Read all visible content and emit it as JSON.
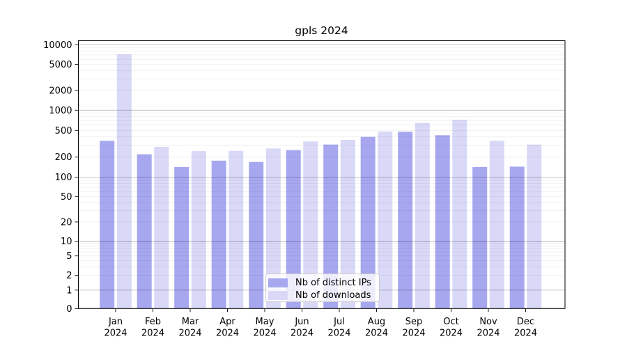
{
  "chart_data": {
    "type": "bar",
    "title": "gpls 2024",
    "year": "2024",
    "categories": [
      "Jan",
      "Feb",
      "Mar",
      "Apr",
      "May",
      "Jun",
      "Jul",
      "Aug",
      "Sep",
      "Oct",
      "Nov",
      "Dec"
    ],
    "series": [
      {
        "name": "Nb of distinct IPs",
        "color": "#a7a7f0",
        "values": [
          350,
          220,
          142,
          177,
          169,
          254,
          307,
          400,
          477,
          423,
          142,
          144
        ]
      },
      {
        "name": "Nb of downloads",
        "color": "#d9d9f7",
        "values": [
          7150,
          284,
          246,
          248,
          269,
          341,
          361,
          480,
          644,
          716,
          350,
          307
        ]
      }
    ],
    "yscale": "symlog",
    "ylim": [
      0,
      10000
    ],
    "y_ticks": [
      0,
      1,
      2,
      5,
      10,
      20,
      50,
      100,
      200,
      500,
      1000,
      2000,
      5000,
      10000
    ],
    "grid": "both",
    "legend_position": "lower center"
  }
}
